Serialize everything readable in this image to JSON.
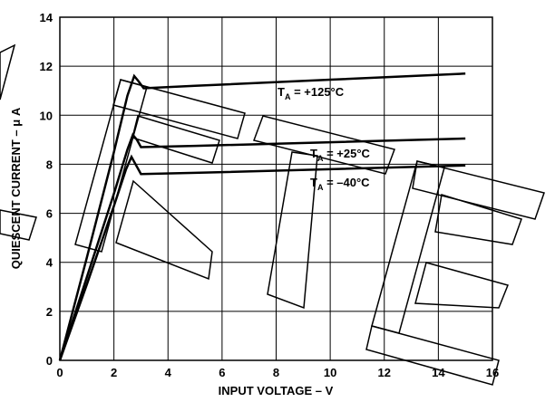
{
  "chart_data": {
    "type": "line",
    "x_label": "INPUT VOLTAGE – V",
    "y_label": "QUIESCENT CURRENT – μ A",
    "xlim": [
      0,
      16
    ],
    "xticks": [
      0,
      2,
      4,
      6,
      8,
      10,
      12,
      14,
      16
    ],
    "ylim": [
      0,
      14
    ],
    "yticks": [
      0,
      2,
      4,
      6,
      8,
      10,
      12,
      14
    ],
    "grid": true,
    "series": [
      {
        "name": "+125°C",
        "color": "#000000",
        "x": [
          0,
          1,
          2,
          2.5,
          2.75,
          2.9,
          3.1,
          5,
          10,
          15
        ],
        "values": [
          0,
          4.2,
          8.5,
          10.8,
          11.6,
          11.4,
          11.1,
          11.2,
          11.45,
          11.7
        ]
      },
      {
        "name": "+25°C",
        "color": "#000000",
        "x": [
          0,
          1,
          2,
          2.5,
          2.7,
          2.85,
          3.0,
          5,
          10,
          15
        ],
        "values": [
          0,
          3.4,
          6.8,
          8.6,
          9.2,
          9.0,
          8.7,
          8.75,
          8.9,
          9.05
        ]
      },
      {
        "name": "–40°C",
        "color": "#000000",
        "x": [
          0,
          1,
          2,
          2.45,
          2.65,
          2.8,
          3.0,
          5,
          10,
          15
        ],
        "values": [
          0,
          3.1,
          6.3,
          7.8,
          8.3,
          8.0,
          7.6,
          7.65,
          7.8,
          7.95
        ]
      }
    ],
    "annotations": [
      {
        "text": "T",
        "subscript": "A",
        "suffix": " = +125°C"
      },
      {
        "text": "T",
        "subscript": "A",
        "suffix": " = +25°C"
      },
      {
        "text": "T",
        "subscript": "A",
        "suffix": " = –40°C"
      }
    ]
  }
}
